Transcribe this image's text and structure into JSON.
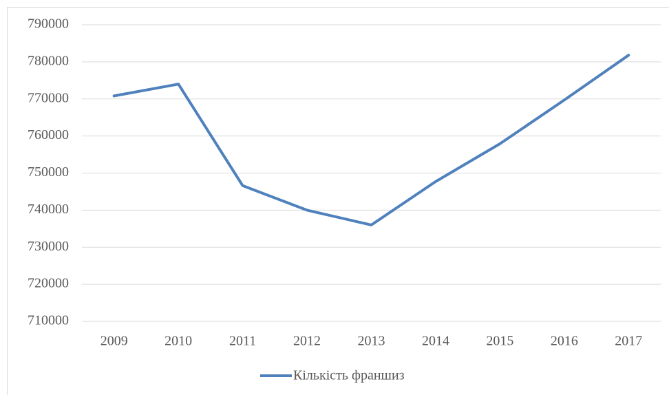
{
  "chart_data": {
    "type": "line",
    "categories": [
      "2009",
      "2010",
      "2011",
      "2012",
      "2013",
      "2014",
      "2015",
      "2016",
      "2017"
    ],
    "series": [
      {
        "name": "Кількість франшиз",
        "color": "#4f81bd",
        "values": [
          770800,
          774000,
          746600,
          740000,
          736000,
          747700,
          757900,
          769700,
          781800
        ]
      }
    ],
    "ylim": [
      710000,
      790000
    ],
    "yticks": [
      710000,
      720000,
      730000,
      740000,
      750000,
      760000,
      770000,
      780000,
      790000
    ],
    "grid": true,
    "legend": "bottom"
  }
}
